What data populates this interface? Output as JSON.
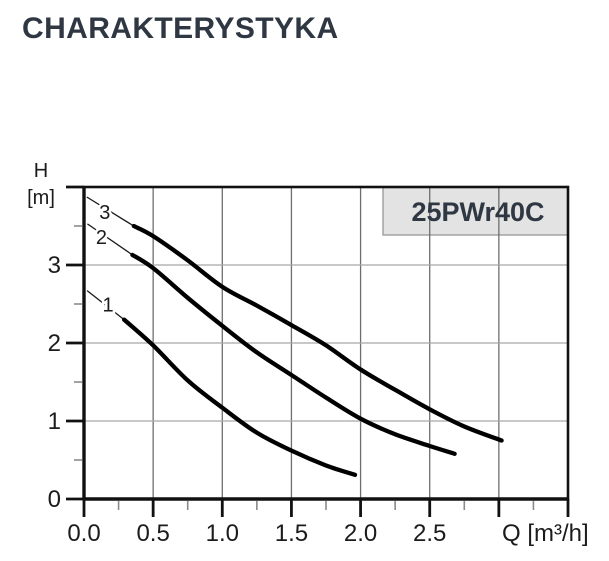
{
  "title": "CHARAKTERYSTYKA",
  "badge": {
    "text": "25PWr40C"
  },
  "colors": {
    "title_text": "#2e3742",
    "badge_bg": "#e3e3e3",
    "badge_border": "#909090",
    "badge_text": "#2e3742",
    "frame": "#111111",
    "grid_vertical": "#6e6e6e",
    "grid_horizontal": "#a8a8a8",
    "tick_major": "#111111",
    "tick_minor": "#8a8a8a",
    "axis_label": "#1b1b1b",
    "curve": "#000000",
    "leader": "#1a1a1a"
  },
  "chart_data": {
    "type": "line",
    "title": "25PWr40C",
    "xlabel": "Q [m³/h]",
    "ylabel_lines": [
      "H",
      "[m]"
    ],
    "xlim": [
      0,
      3.5
    ],
    "ylim": [
      0,
      4
    ],
    "grid": {
      "vertical_at": [
        0.5,
        1.0,
        1.5,
        2.0,
        2.5,
        3.0
      ],
      "horizontal_at": [
        1,
        2,
        3
      ]
    },
    "x_major_ticks": [
      0,
      0.5,
      1.0,
      1.5,
      2.0,
      2.5,
      3.0,
      3.5
    ],
    "x_minor_ticks": [
      0.25,
      0.75,
      1.25,
      1.75,
      2.25,
      2.75,
      3.25
    ],
    "x_tick_labels": [
      {
        "value": 0,
        "label": "0.0"
      },
      {
        "value": 0.5,
        "label": "0.5"
      },
      {
        "value": 1.0,
        "label": "1.0"
      },
      {
        "value": 1.5,
        "label": "1.5"
      },
      {
        "value": 2.0,
        "label": "2.0"
      },
      {
        "value": 2.5,
        "label": "2.5"
      }
    ],
    "y_major_ticks": [
      0,
      1,
      2,
      3,
      4
    ],
    "y_minor_ticks": [
      0.5,
      1.5,
      2.5,
      3.5
    ],
    "y_tick_labels": [
      {
        "value": 0,
        "label": "0"
      },
      {
        "value": 1,
        "label": "1"
      },
      {
        "value": 2,
        "label": "2"
      },
      {
        "value": 3,
        "label": "3"
      }
    ],
    "series": [
      {
        "name": "1",
        "points": [
          [
            0.29,
            2.3
          ],
          [
            0.5,
            1.97
          ],
          [
            0.75,
            1.52
          ],
          [
            1.0,
            1.17
          ],
          [
            1.25,
            0.85
          ],
          [
            1.5,
            0.62
          ],
          [
            1.75,
            0.43
          ],
          [
            1.96,
            0.31
          ]
        ]
      },
      {
        "name": "2",
        "points": [
          [
            0.35,
            3.13
          ],
          [
            0.5,
            2.96
          ],
          [
            0.75,
            2.58
          ],
          [
            1.0,
            2.22
          ],
          [
            1.25,
            1.88
          ],
          [
            1.5,
            1.59
          ],
          [
            1.75,
            1.3
          ],
          [
            2.0,
            1.03
          ],
          [
            2.25,
            0.83
          ],
          [
            2.5,
            0.68
          ],
          [
            2.68,
            0.58
          ]
        ]
      },
      {
        "name": "3",
        "points": [
          [
            0.36,
            3.5
          ],
          [
            0.5,
            3.37
          ],
          [
            0.75,
            3.06
          ],
          [
            1.0,
            2.72
          ],
          [
            1.25,
            2.48
          ],
          [
            1.5,
            2.23
          ],
          [
            1.75,
            1.97
          ],
          [
            2.0,
            1.66
          ],
          [
            2.25,
            1.4
          ],
          [
            2.5,
            1.15
          ],
          [
            2.75,
            0.93
          ],
          [
            3.02,
            0.75
          ]
        ]
      }
    ],
    "legend": "curve numbers 1, 2, 3 labelled at curve starts"
  }
}
